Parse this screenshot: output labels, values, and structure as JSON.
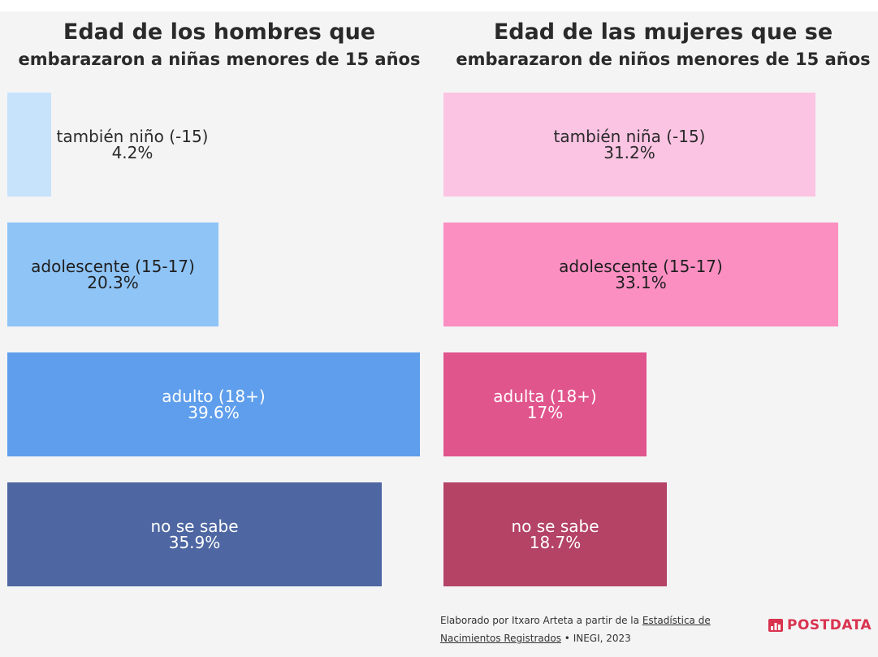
{
  "chart_data": [
    {
      "type": "bar",
      "title": "Edad de los hombres que",
      "subtitle": "embarazaron a niñas menores de 15 años",
      "categories": [
        "también niño (-15)",
        "adolescente (15-17)",
        "adulto (18+)",
        "no se sabe"
      ],
      "values": [
        4.2,
        20.3,
        39.6,
        35.9
      ],
      "value_labels": [
        "4.2%",
        "20.3%",
        "39.6%",
        "35.9%"
      ],
      "colors": [
        "#c7e2fb",
        "#8fc4f6",
        "#5e9eec",
        "#4e67a2"
      ],
      "label_colors": [
        "#2a2a2a",
        "#1f1f1f",
        "#ffffff",
        "#ffffff"
      ],
      "xlim": [
        0,
        39.6
      ]
    },
    {
      "type": "bar",
      "title": "Edad de las mujeres que se",
      "subtitle": "embarazaron de niños menores de 15 años",
      "categories": [
        "también niña (-15)",
        "adolescente (15-17)",
        "adulta (18+)",
        "no se sabe"
      ],
      "values": [
        31.2,
        33.1,
        17,
        18.7
      ],
      "value_labels": [
        "31.2%",
        "33.1%",
        "17%",
        "18.7%"
      ],
      "colors": [
        "#fcc4e3",
        "#fb8fc2",
        "#e1558d",
        "#b44366"
      ],
      "label_colors": [
        "#2a2a2a",
        "#1f1f1f",
        "#ffffff",
        "#ffffff"
      ],
      "xlim": [
        0,
        33.1
      ]
    }
  ],
  "footer": {
    "line1_prefix": "Elaborado por Itxaro Arteta a partir de la",
    "line1_link": "Estadística de",
    "line2_link": "Nacimientos Registrados",
    "line2_suffix": " • INEGI, 2023"
  },
  "brand": {
    "name": "POSTDATA",
    "color": "#d9334f"
  }
}
